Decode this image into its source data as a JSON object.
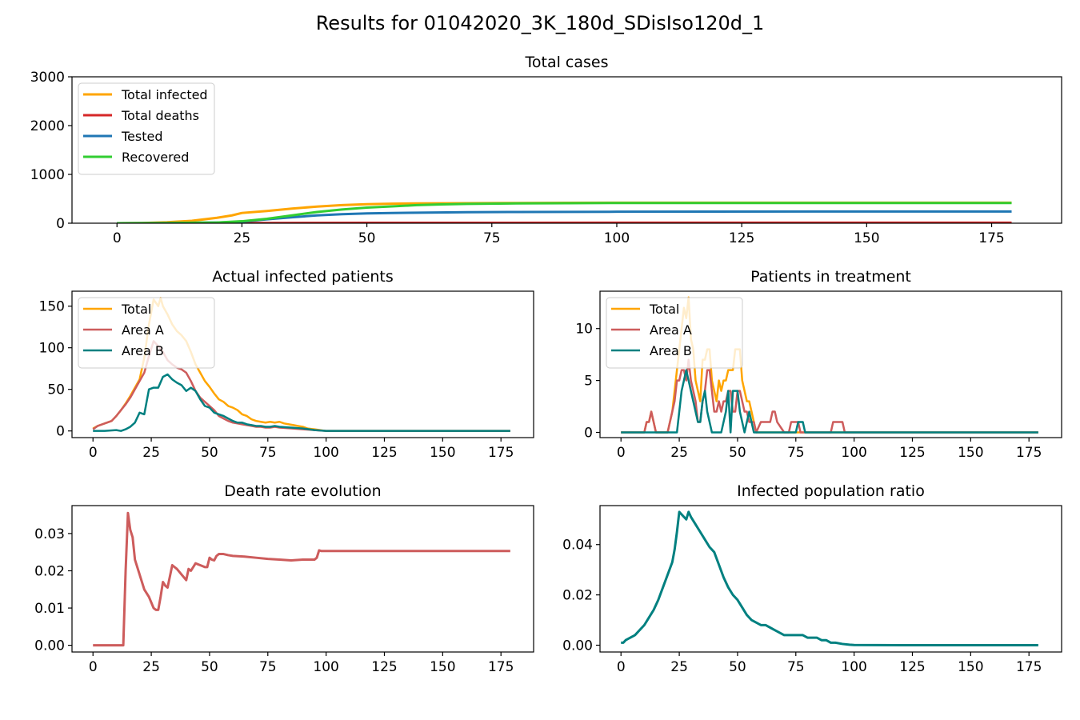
{
  "figure": {
    "suptitle": "Results for 01042020_3K_180d_SDisIso120d_1"
  },
  "colors": {
    "total_infected": "#ffa500",
    "total_deaths": "#d62728",
    "tested": "#1f77b4",
    "recovered": "#32cd32",
    "area_a": "#cd5c5c",
    "area_b": "#008080",
    "death_rate": "#cd5c5c",
    "ratio": "#008080"
  },
  "chart_data": [
    {
      "id": "total-cases",
      "type": "line",
      "title": "Total cases",
      "xlim": [
        -9,
        189
      ],
      "ylim": [
        0,
        3000
      ],
      "xticks": [
        0,
        25,
        50,
        75,
        100,
        125,
        150,
        175
      ],
      "yticks": [
        0,
        1000,
        2000,
        3000
      ],
      "legend": "upper-left",
      "series": [
        {
          "name": "Total infected",
          "color_key": "total_infected",
          "x": [
            0,
            5,
            10,
            15,
            20,
            23,
            25,
            30,
            35,
            40,
            45,
            50,
            55,
            60,
            70,
            80,
            90,
            100,
            120,
            150,
            179
          ],
          "y": [
            0,
            5,
            20,
            50,
            110,
            160,
            210,
            250,
            300,
            340,
            370,
            390,
            400,
            405,
            410,
            415,
            418,
            420,
            420,
            420,
            420
          ]
        },
        {
          "name": "Total deaths",
          "color_key": "total_deaths",
          "x": [
            0,
            15,
            20,
            30,
            50,
            100,
            179
          ],
          "y": [
            0,
            1,
            3,
            5,
            8,
            10,
            10
          ]
        },
        {
          "name": "Tested",
          "color_key": "tested",
          "x": [
            0,
            10,
            20,
            25,
            30,
            35,
            40,
            45,
            50,
            55,
            60,
            70,
            80,
            100,
            140,
            179
          ],
          "y": [
            0,
            5,
            15,
            30,
            80,
            120,
            160,
            185,
            200,
            210,
            215,
            225,
            230,
            235,
            240,
            240
          ]
        },
        {
          "name": "Recovered",
          "color_key": "recovered",
          "x": [
            0,
            10,
            20,
            25,
            30,
            35,
            40,
            45,
            50,
            55,
            60,
            65,
            70,
            80,
            90,
            100,
            120,
            150,
            179
          ],
          "y": [
            0,
            2,
            15,
            40,
            90,
            160,
            230,
            280,
            320,
            345,
            370,
            385,
            395,
            405,
            410,
            415,
            415,
            415,
            415
          ]
        }
      ]
    },
    {
      "id": "actual-infected",
      "type": "line",
      "title": "Actual infected patients",
      "xlim": [
        -9,
        189
      ],
      "ylim": [
        -8,
        168
      ],
      "xticks": [
        0,
        25,
        50,
        75,
        100,
        125,
        150,
        175
      ],
      "yticks": [
        0,
        50,
        100,
        150
      ],
      "legend": "upper-left",
      "series": [
        {
          "name": "Total",
          "color_key": "total_infected",
          "x": [
            0,
            2,
            5,
            8,
            10,
            12,
            14,
            16,
            18,
            20,
            22,
            24,
            26,
            28,
            29,
            30,
            32,
            34,
            36,
            38,
            40,
            42,
            44,
            46,
            48,
            50,
            52,
            54,
            56,
            58,
            60,
            62,
            64,
            66,
            68,
            70,
            72,
            74,
            76,
            78,
            80,
            82,
            84,
            86,
            88,
            90,
            92,
            95,
            100,
            110,
            130,
            150,
            179
          ],
          "y": [
            3,
            6,
            9,
            12,
            18,
            25,
            33,
            42,
            52,
            62,
            88,
            128,
            158,
            150,
            160,
            150,
            140,
            128,
            120,
            115,
            108,
            95,
            80,
            70,
            60,
            53,
            45,
            38,
            35,
            30,
            28,
            25,
            20,
            18,
            14,
            12,
            11,
            10,
            11,
            10,
            11,
            9,
            8,
            7,
            6,
            5,
            3,
            2,
            0,
            0,
            0,
            0,
            0
          ]
        },
        {
          "name": "Area A",
          "color_key": "area_a",
          "x": [
            0,
            2,
            5,
            8,
            10,
            12,
            14,
            16,
            18,
            20,
            22,
            24,
            26,
            28,
            30,
            32,
            34,
            36,
            38,
            40,
            42,
            44,
            46,
            48,
            50,
            52,
            54,
            56,
            58,
            60,
            62,
            64,
            66,
            68,
            70,
            72,
            74,
            76,
            78,
            80,
            85,
            90,
            95,
            100,
            120,
            150,
            179
          ],
          "y": [
            2,
            6,
            9,
            12,
            18,
            25,
            32,
            40,
            50,
            60,
            70,
            90,
            108,
            102,
            95,
            85,
            80,
            76,
            74,
            70,
            60,
            48,
            40,
            35,
            30,
            25,
            18,
            15,
            12,
            10,
            9,
            8,
            7,
            6,
            5,
            5,
            4,
            4,
            5,
            4,
            3,
            2,
            1,
            0,
            0,
            0,
            0
          ]
        },
        {
          "name": "Area B",
          "color_key": "area_b",
          "x": [
            0,
            5,
            10,
            12,
            14,
            16,
            18,
            20,
            22,
            24,
            26,
            28,
            30,
            32,
            34,
            36,
            38,
            40,
            42,
            44,
            46,
            48,
            50,
            52,
            54,
            56,
            58,
            60,
            62,
            64,
            66,
            68,
            70,
            72,
            74,
            76,
            78,
            80,
            85,
            90,
            95,
            100,
            120,
            150,
            179
          ],
          "y": [
            0,
            0,
            1,
            0,
            2,
            5,
            10,
            22,
            20,
            50,
            52,
            52,
            65,
            68,
            62,
            58,
            55,
            48,
            52,
            48,
            38,
            30,
            28,
            22,
            20,
            18,
            15,
            12,
            10,
            10,
            8,
            7,
            6,
            6,
            5,
            5,
            6,
            5,
            4,
            3,
            1,
            0,
            0,
            0,
            0
          ]
        }
      ]
    },
    {
      "id": "patients-treatment",
      "type": "line",
      "title": "Patients in treatment",
      "xlim": [
        -9,
        189
      ],
      "ylim": [
        -0.5,
        13.6
      ],
      "xticks": [
        0,
        25,
        50,
        75,
        100,
        125,
        150,
        175
      ],
      "yticks": [
        0,
        5,
        10
      ],
      "legend": "upper-left",
      "series": [
        {
          "name": "Total",
          "color_key": "total_infected",
          "x": [
            0,
            10,
            11,
            12,
            13,
            14,
            15,
            16,
            20,
            21,
            22,
            23,
            24,
            25,
            26,
            27,
            28,
            29,
            30,
            31,
            32,
            33,
            34,
            35,
            36,
            37,
            38,
            39,
            40,
            41,
            42,
            43,
            44,
            45,
            46,
            47,
            48,
            49,
            50,
            51,
            52,
            53,
            54,
            55,
            56,
            57,
            58,
            60,
            65,
            70,
            179
          ],
          "y": [
            0,
            0,
            1,
            1,
            2,
            1,
            0,
            0,
            0,
            1,
            2,
            4,
            6,
            8,
            10,
            12,
            11,
            13,
            9,
            8,
            5,
            4,
            3,
            7,
            7,
            8,
            8,
            5,
            4,
            3,
            5,
            4,
            5,
            5,
            6,
            6,
            6,
            8,
            8,
            8,
            5,
            4,
            3,
            3,
            2,
            1,
            0,
            0,
            0,
            0,
            0
          ]
        },
        {
          "name": "Area A",
          "color_key": "area_a",
          "x": [
            0,
            10,
            11,
            12,
            13,
            14,
            15,
            16,
            20,
            21,
            22,
            23,
            24,
            25,
            26,
            27,
            28,
            29,
            30,
            31,
            32,
            33,
            34,
            35,
            36,
            37,
            38,
            39,
            40,
            41,
            42,
            43,
            44,
            45,
            46,
            47,
            48,
            49,
            50,
            51,
            52,
            53,
            54,
            55,
            56,
            57,
            58,
            60,
            62,
            64,
            65,
            66,
            67,
            70,
            72,
            73,
            75,
            76,
            77,
            80,
            90,
            91,
            92,
            95,
            96,
            97,
            179
          ],
          "y": [
            0,
            0,
            1,
            1,
            2,
            1,
            0,
            0,
            0,
            1,
            2,
            3,
            5,
            5,
            6,
            6,
            5,
            7,
            5,
            4,
            3,
            1,
            1,
            3,
            4,
            6,
            6,
            4,
            2,
            2,
            3,
            2,
            3,
            3,
            4,
            4,
            2,
            2,
            4,
            4,
            3,
            2,
            2,
            1,
            1,
            1,
            0,
            1,
            1,
            1,
            2,
            2,
            1,
            0,
            0,
            1,
            1,
            1,
            0,
            0,
            0,
            1,
            1,
            1,
            0,
            0,
            0
          ]
        },
        {
          "name": "Area B",
          "color_key": "area_b",
          "x": [
            0,
            20,
            24,
            25,
            26,
            27,
            28,
            29,
            30,
            31,
            32,
            33,
            34,
            35,
            36,
            37,
            38,
            39,
            40,
            43,
            44,
            45,
            46,
            47,
            48,
            49,
            50,
            51,
            52,
            53,
            54,
            55,
            56,
            57,
            58,
            75,
            76,
            77,
            78,
            79,
            80,
            179
          ],
          "y": [
            0,
            0,
            0,
            2,
            4,
            5,
            6,
            5,
            4,
            3,
            2,
            1,
            1,
            3,
            4,
            2,
            1,
            0,
            0,
            0,
            1,
            2,
            4,
            0,
            4,
            4,
            4,
            2,
            1,
            0,
            1,
            2,
            1,
            0,
            0,
            0,
            1,
            1,
            1,
            0,
            0,
            0
          ]
        }
      ]
    },
    {
      "id": "death-rate",
      "type": "line",
      "title": "Death rate evolution",
      "xlim": [
        -9,
        189
      ],
      "ylim": [
        -0.0018,
        0.0375
      ],
      "xticks": [
        0,
        25,
        50,
        75,
        100,
        125,
        150,
        175
      ],
      "yticks": [
        0.0,
        0.01,
        0.02,
        0.03
      ],
      "legend": "none",
      "series": [
        {
          "color_key": "death_rate",
          "x": [
            0,
            13,
            14,
            15,
            16,
            17,
            18,
            20,
            22,
            24,
            26,
            27,
            28,
            29,
            30,
            31,
            32,
            34,
            36,
            38,
            40,
            41,
            42,
            44,
            46,
            48,
            49,
            50,
            51,
            52,
            53,
            54,
            56,
            58,
            60,
            65,
            70,
            75,
            80,
            85,
            90,
            95,
            96,
            97,
            98,
            100,
            120,
            150,
            179
          ],
          "y": [
            0,
            0,
            0.02,
            0.0355,
            0.031,
            0.029,
            0.023,
            0.019,
            0.015,
            0.013,
            0.01,
            0.0095,
            0.0095,
            0.013,
            0.017,
            0.016,
            0.0155,
            0.0215,
            0.0205,
            0.019,
            0.0175,
            0.0205,
            0.02,
            0.022,
            0.0215,
            0.021,
            0.021,
            0.0235,
            0.023,
            0.0228,
            0.024,
            0.0245,
            0.0245,
            0.0242,
            0.024,
            0.0238,
            0.0235,
            0.0232,
            0.023,
            0.0228,
            0.023,
            0.023,
            0.0235,
            0.0255,
            0.0253,
            0.0253,
            0.0253,
            0.0253,
            0.0253
          ]
        }
      ]
    },
    {
      "id": "infected-ratio",
      "type": "line",
      "title": "Infected population ratio",
      "xlim": [
        -9,
        189
      ],
      "ylim": [
        -0.0027,
        0.0555
      ],
      "xticks": [
        0,
        25,
        50,
        75,
        100,
        125,
        150,
        175
      ],
      "yticks": [
        0.0,
        0.02,
        0.04
      ],
      "legend": "none",
      "series": [
        {
          "color_key": "ratio",
          "x": [
            0,
            1,
            2,
            4,
            6,
            8,
            10,
            12,
            14,
            16,
            18,
            20,
            22,
            23,
            24,
            25,
            26,
            27,
            28,
            29,
            30,
            32,
            34,
            36,
            38,
            40,
            42,
            44,
            46,
            48,
            50,
            52,
            54,
            56,
            58,
            60,
            62,
            64,
            66,
            68,
            70,
            72,
            74,
            76,
            78,
            80,
            82,
            84,
            86,
            88,
            90,
            92,
            95,
            98,
            100,
            120,
            150,
            179
          ],
          "y": [
            0.001,
            0.001,
            0.002,
            0.003,
            0.004,
            0.006,
            0.008,
            0.011,
            0.014,
            0.018,
            0.023,
            0.028,
            0.033,
            0.038,
            0.045,
            0.053,
            0.052,
            0.051,
            0.05,
            0.053,
            0.051,
            0.048,
            0.045,
            0.042,
            0.039,
            0.037,
            0.032,
            0.027,
            0.023,
            0.02,
            0.018,
            0.015,
            0.012,
            0.01,
            0.009,
            0.008,
            0.008,
            0.007,
            0.006,
            0.005,
            0.004,
            0.004,
            0.004,
            0.004,
            0.004,
            0.003,
            0.003,
            0.003,
            0.002,
            0.002,
            0.001,
            0.001,
            0.0005,
            0.0002,
            0.0001,
            0,
            0,
            0
          ]
        }
      ]
    }
  ]
}
